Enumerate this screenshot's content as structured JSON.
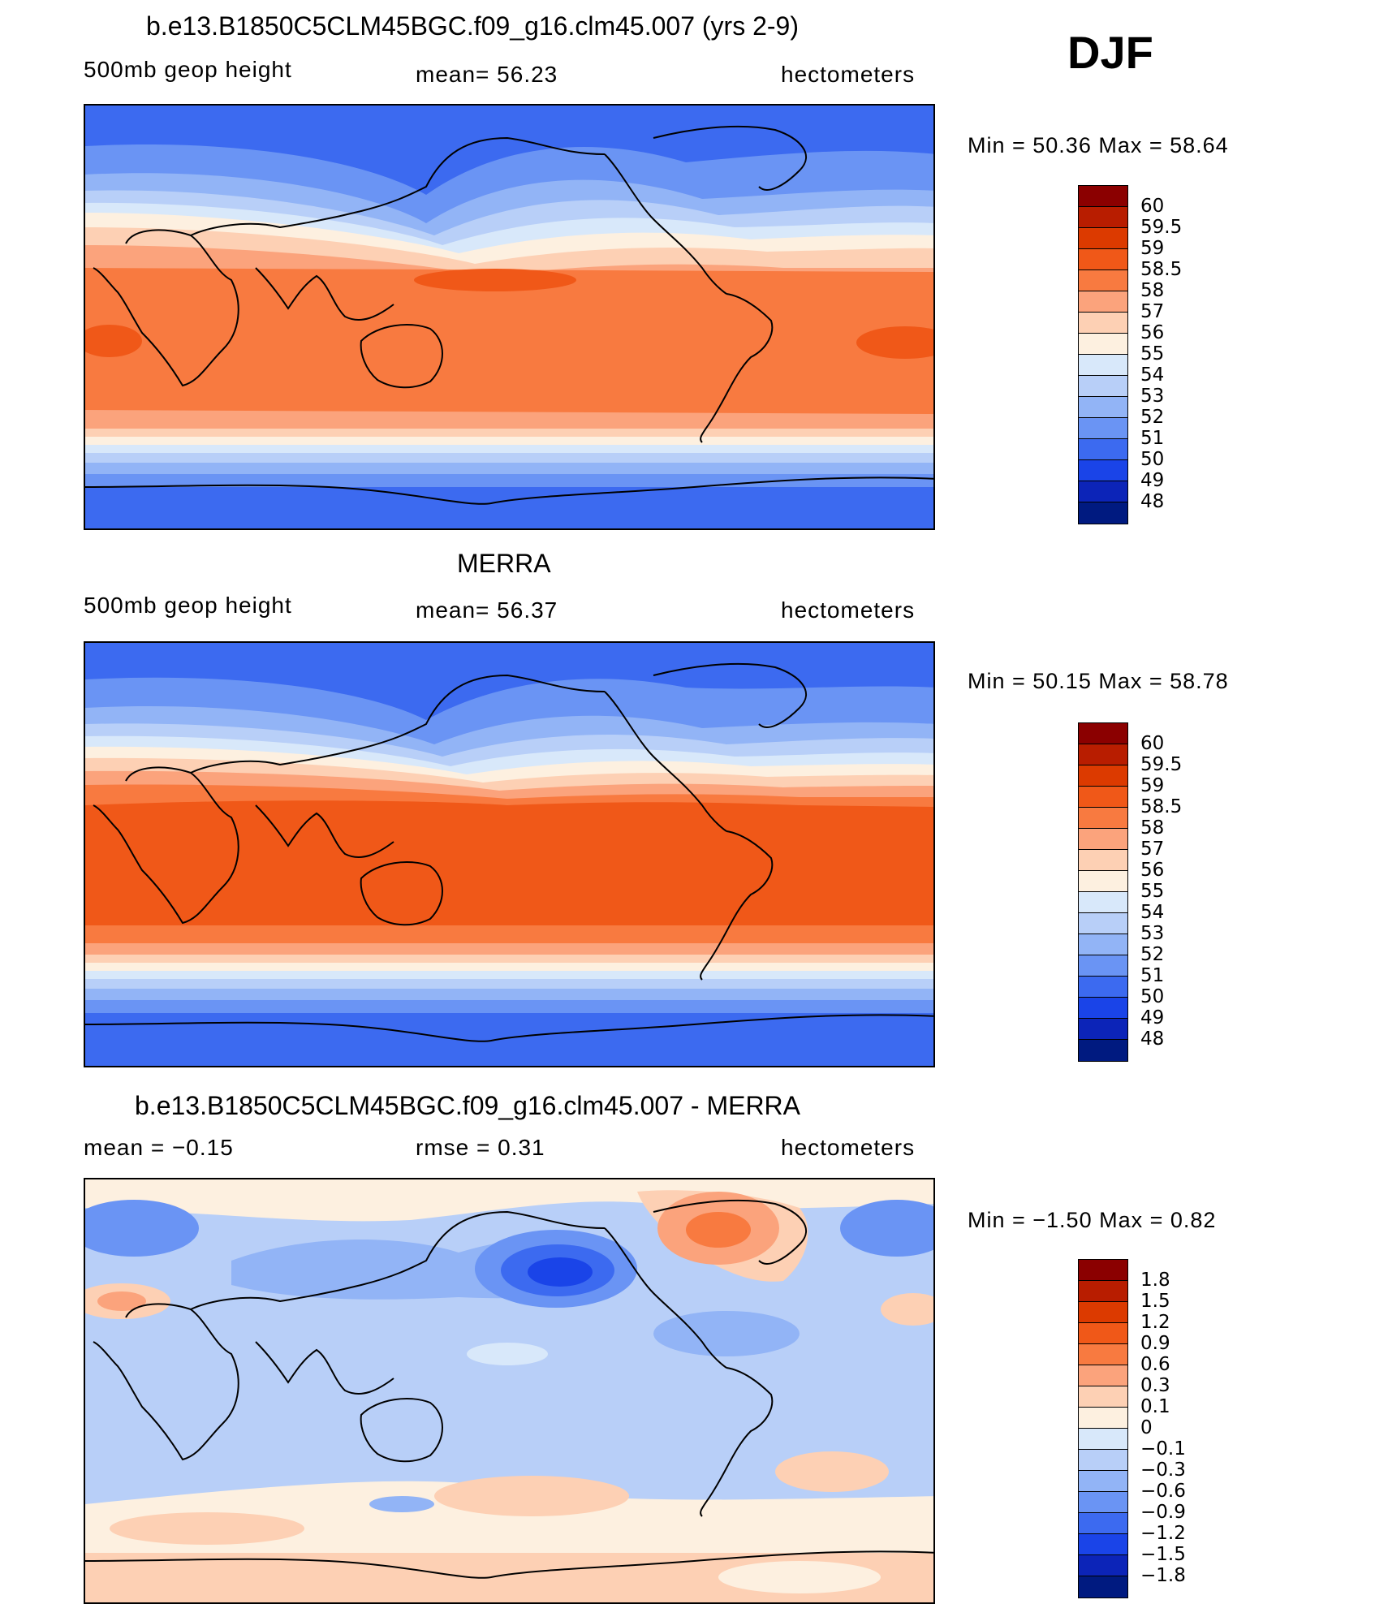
{
  "season": "DJF",
  "units": "hectometers",
  "panels": [
    {
      "title": "b.e13.B1850C5CLM45BGC.f09_g16.clm45.007 (yrs 2-9)",
      "left_label": "500mb  geop  height",
      "mid_label": "mean=   56.23",
      "right_label": "hectometers",
      "min_max": "Min  =    50.36  Max  =    58.64",
      "levels": [
        "60",
        "59.5",
        "59",
        "58.5",
        "58",
        "57",
        "56",
        "55",
        "54",
        "53",
        "52",
        "51",
        "50",
        "49",
        "48"
      ],
      "colors": [
        "#8b0000",
        "#b81d00",
        "#dc3a00",
        "#f05818",
        "#f87a40",
        "#fba37c",
        "#fdd0b4",
        "#fdf0e0",
        "#d8e8fa",
        "#b8cff8",
        "#92b4f6",
        "#6a94f4",
        "#3c6af0",
        "#1a44e8",
        "#0c24b8",
        "#001a80"
      ]
    },
    {
      "title": "MERRA",
      "left_label": "500mb  geop  height",
      "mid_label": "mean=   56.37",
      "right_label": "hectometers",
      "min_max": "Min  =    50.15  Max  =    58.78",
      "levels": [
        "60",
        "59.5",
        "59",
        "58.5",
        "58",
        "57",
        "56",
        "55",
        "54",
        "53",
        "52",
        "51",
        "50",
        "49",
        "48"
      ],
      "colors": [
        "#8b0000",
        "#b81d00",
        "#dc3a00",
        "#f05818",
        "#f87a40",
        "#fba37c",
        "#fdd0b4",
        "#fdf0e0",
        "#d8e8fa",
        "#b8cff8",
        "#92b4f6",
        "#6a94f4",
        "#3c6af0",
        "#1a44e8",
        "#0c24b8",
        "#001a80"
      ]
    },
    {
      "title": "b.e13.B1850C5CLM45BGC.f09_g16.clm45.007 - MERRA",
      "left_label": "mean  =    −0.15",
      "mid_label": "rmse  =     0.31",
      "right_label": "hectometers",
      "min_max": "Min  =    −1.50  Max  =      0.82",
      "levels": [
        "1.8",
        "1.5",
        "1.2",
        "0.9",
        "0.6",
        "0.3",
        "0.1",
        "0",
        "−0.1",
        "−0.3",
        "−0.6",
        "−0.9",
        "−1.2",
        "−1.5",
        "−1.8"
      ],
      "colors": [
        "#8b0000",
        "#b81d00",
        "#dc3a00",
        "#f05818",
        "#f87a40",
        "#fba37c",
        "#fdd0b4",
        "#fdf0e0",
        "#d8e8fa",
        "#b8cff8",
        "#92b4f6",
        "#6a94f4",
        "#3c6af0",
        "#1a44e8",
        "#0c24b8",
        "#001a80"
      ]
    }
  ]
}
